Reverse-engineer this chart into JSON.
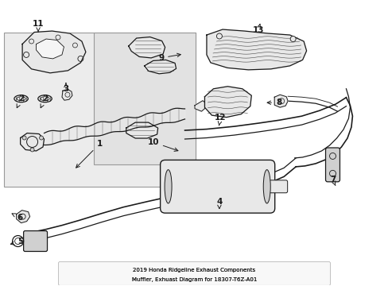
{
  "bg_color": "#ffffff",
  "line_color": "#1a1a1a",
  "gray_fill": "#d0d0d0",
  "light_gray": "#e8e8e8",
  "box_fill": "#ececec",
  "title_line1": "2019 Honda Ridgeline Exhaust Components",
  "title_line2": "Muffler, Exhuast Diagram for 18307-T6Z-A01",
  "font_size_label": 7.5,
  "font_size_title": 5.0,
  "lw": 0.9
}
